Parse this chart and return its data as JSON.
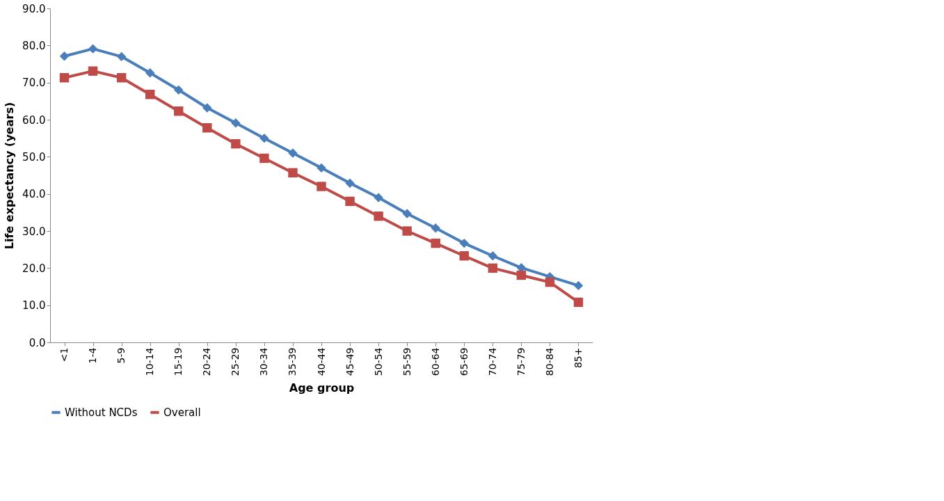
{
  "chart_data": {
    "type": "line",
    "xlabel": "Age group",
    "ylabel": "Life expectancy (years)",
    "categories": [
      "<1",
      "1-4",
      "5-9",
      "10-14",
      "15-19",
      "20-24",
      "25-29",
      "30-34",
      "35-39",
      "40-44",
      "45-49",
      "50-54",
      "55-59",
      "60-64",
      "65-69",
      "70-74",
      "75-79",
      "80-84",
      "85+"
    ],
    "ylim": [
      0,
      90
    ],
    "yticks": [
      {
        "value": 0,
        "label": "0.0"
      },
      {
        "value": 10,
        "label": "10.0"
      },
      {
        "value": 20,
        "label": "20.0"
      },
      {
        "value": 30,
        "label": "30.0"
      },
      {
        "value": 40,
        "label": "40.0"
      },
      {
        "value": 50,
        "label": "50.0"
      },
      {
        "value": 60,
        "label": "60.0"
      },
      {
        "value": 70,
        "label": "70.0"
      },
      {
        "value": 80,
        "label": "80.0"
      },
      {
        "value": 90,
        "label": "90.0"
      }
    ],
    "series": [
      {
        "name": "Without NCDs",
        "color": "#4a7ebb",
        "marker": "diamond",
        "values": [
          77.1,
          79.1,
          77,
          72.6,
          68,
          63.2,
          59.1,
          55,
          51,
          47,
          42.9,
          39,
          34.7,
          30.8,
          26.7,
          23.3,
          20.1,
          17.7,
          15.3
        ]
      },
      {
        "name": "Overall",
        "color": "#be4b48",
        "marker": "square",
        "values": [
          71.3,
          73.1,
          71.3,
          66.8,
          62.3,
          57.8,
          53.5,
          49.6,
          45.7,
          42,
          38,
          34,
          30,
          26.7,
          23.3,
          20,
          18.1,
          16.2,
          10.8
        ]
      }
    ],
    "grid": false,
    "legend": "bottom",
    "line_style": "solid"
  }
}
